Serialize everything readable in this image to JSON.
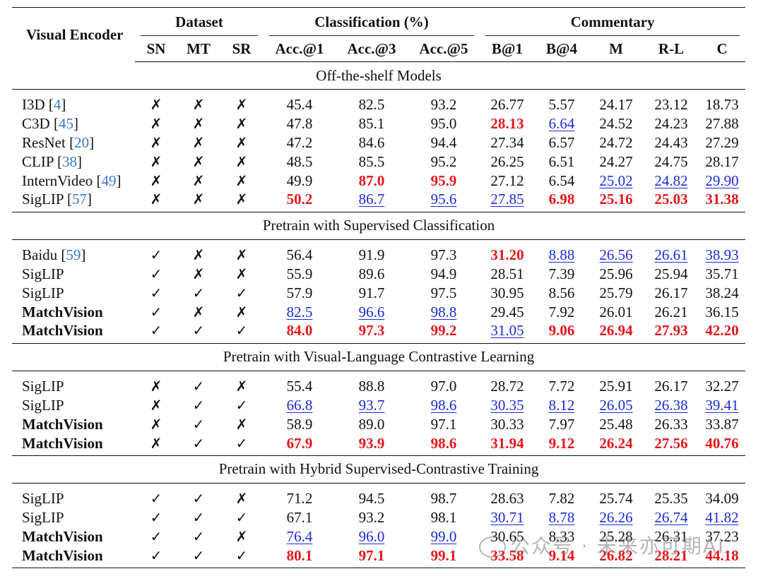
{
  "header": {
    "visual_encoder": "Visual Encoder",
    "groups": {
      "dataset": "Dataset",
      "classification": "Classification (%)",
      "commentary": "Commentary"
    },
    "columns": [
      "SN",
      "MT",
      "SR",
      "Acc.@1",
      "Acc.@3",
      "Acc.@5",
      "B@1",
      "B@4",
      "M",
      "R-L",
      "C"
    ]
  },
  "sections": [
    {
      "title": "Off-the-shelf Models",
      "rows": [
        {
          "name": "I3D",
          "cite": "4",
          "bold_name": false,
          "marks": [
            "✗",
            "✗",
            "✗"
          ],
          "values": [
            "45.4",
            "82.5",
            "93.2",
            "26.77",
            "5.57",
            "24.17",
            "23.12",
            "18.73"
          ],
          "styles": [
            "",
            "",
            "",
            "",
            "",
            "",
            "",
            ""
          ]
        },
        {
          "name": "C3D",
          "cite": "45",
          "bold_name": false,
          "marks": [
            "✗",
            "✗",
            "✗"
          ],
          "values": [
            "47.8",
            "85.1",
            "95.0",
            "28.13",
            "6.64",
            "24.52",
            "24.23",
            "27.88"
          ],
          "styles": [
            "",
            "",
            "",
            "best",
            "second",
            "",
            "",
            ""
          ]
        },
        {
          "name": "ResNet",
          "cite": "20",
          "bold_name": false,
          "marks": [
            "✗",
            "✗",
            "✗"
          ],
          "values": [
            "47.2",
            "84.6",
            "94.4",
            "27.34",
            "6.57",
            "24.72",
            "24.43",
            "27.29"
          ],
          "styles": [
            "",
            "",
            "",
            "",
            "",
            "",
            "",
            ""
          ]
        },
        {
          "name": "CLIP",
          "cite": "38",
          "bold_name": false,
          "marks": [
            "✗",
            "✗",
            "✗"
          ],
          "values": [
            "48.5",
            "85.5",
            "95.2",
            "26.25",
            "6.51",
            "24.27",
            "24.75",
            "28.17"
          ],
          "styles": [
            "",
            "",
            "",
            "",
            "",
            "",
            "",
            ""
          ]
        },
        {
          "name": "InternVideo",
          "cite": "49",
          "bold_name": false,
          "marks": [
            "✗",
            "✗",
            "✗"
          ],
          "values": [
            "49.9",
            "87.0",
            "95.9",
            "27.12",
            "6.54",
            "25.02",
            "24.82",
            "29.90"
          ],
          "styles": [
            "",
            "best",
            "best",
            "",
            "",
            "second",
            "second",
            "second"
          ]
        },
        {
          "name": "SigLIP",
          "cite": "57",
          "bold_name": false,
          "marks": [
            "✗",
            "✗",
            "✗"
          ],
          "values": [
            "50.2",
            "86.7",
            "95.6",
            "27.85",
            "6.98",
            "25.16",
            "25.03",
            "31.38"
          ],
          "styles": [
            "best",
            "second",
            "second",
            "second",
            "best",
            "best",
            "best",
            "best"
          ]
        }
      ]
    },
    {
      "title": "Pretrain with Supervised Classification",
      "rows": [
        {
          "name": "Baidu",
          "cite": "59",
          "bold_name": false,
          "marks": [
            "✓",
            "✗",
            "✗"
          ],
          "values": [
            "56.4",
            "91.9",
            "97.3",
            "31.20",
            "8.88",
            "26.56",
            "26.61",
            "38.93"
          ],
          "styles": [
            "",
            "",
            "",
            "best",
            "second",
            "second",
            "second",
            "second"
          ]
        },
        {
          "name": "SigLIP",
          "cite": "",
          "bold_name": false,
          "marks": [
            "✓",
            "✗",
            "✗"
          ],
          "values": [
            "55.9",
            "89.6",
            "94.9",
            "28.51",
            "7.39",
            "25.96",
            "25.94",
            "35.71"
          ],
          "styles": [
            "",
            "",
            "",
            "",
            "",
            "",
            "",
            ""
          ]
        },
        {
          "name": "SigLIP",
          "cite": "",
          "bold_name": false,
          "marks": [
            "✓",
            "✓",
            "✓"
          ],
          "values": [
            "57.9",
            "91.7",
            "97.5",
            "30.95",
            "8.56",
            "25.79",
            "26.17",
            "38.24"
          ],
          "styles": [
            "",
            "",
            "",
            "",
            "",
            "",
            "",
            ""
          ]
        },
        {
          "name": "MatchVision",
          "cite": "",
          "bold_name": true,
          "marks": [
            "✓",
            "✗",
            "✗"
          ],
          "values": [
            "82.5",
            "96.6",
            "98.8",
            "29.45",
            "7.92",
            "26.01",
            "26.21",
            "36.15"
          ],
          "styles": [
            "second",
            "second",
            "second",
            "",
            "",
            "",
            "",
            ""
          ]
        },
        {
          "name": "MatchVision",
          "cite": "",
          "bold_name": true,
          "marks": [
            "✓",
            "✓",
            "✓"
          ],
          "values": [
            "84.0",
            "97.3",
            "99.2",
            "31.05",
            "9.06",
            "26.94",
            "27.93",
            "42.20"
          ],
          "styles": [
            "best",
            "best",
            "best",
            "second",
            "best",
            "best",
            "best",
            "best"
          ]
        }
      ]
    },
    {
      "title": "Pretrain with Visual-Language Contrastive Learning",
      "rows": [
        {
          "name": "SigLIP",
          "cite": "",
          "bold_name": false,
          "marks": [
            "✗",
            "✓",
            "✗"
          ],
          "values": [
            "55.4",
            "88.8",
            "97.0",
            "28.72",
            "7.72",
            "25.91",
            "26.17",
            "32.27"
          ],
          "styles": [
            "",
            "",
            "",
            "",
            "",
            "",
            "",
            ""
          ]
        },
        {
          "name": "SigLIP",
          "cite": "",
          "bold_name": false,
          "marks": [
            "✗",
            "✓",
            "✓"
          ],
          "values": [
            "66.8",
            "93.7",
            "98.6",
            "30.35",
            "8.12",
            "26.05",
            "26.38",
            "39.41"
          ],
          "styles": [
            "second",
            "second",
            "second",
            "second",
            "second",
            "second",
            "second",
            "second"
          ]
        },
        {
          "name": "MatchVision",
          "cite": "",
          "bold_name": true,
          "marks": [
            "✗",
            "✓",
            "✗"
          ],
          "values": [
            "58.9",
            "89.0",
            "97.1",
            "30.33",
            "7.97",
            "25.48",
            "26.33",
            "33.87"
          ],
          "styles": [
            "",
            "",
            "",
            "",
            "",
            "",
            "",
            ""
          ]
        },
        {
          "name": "MatchVision",
          "cite": "",
          "bold_name": true,
          "marks": [
            "✗",
            "✓",
            "✓"
          ],
          "values": [
            "67.9",
            "93.9",
            "98.6",
            "31.94",
            "9.12",
            "26.24",
            "27.56",
            "40.76"
          ],
          "styles": [
            "best",
            "best",
            "best",
            "best",
            "best",
            "best",
            "best",
            "best"
          ]
        }
      ]
    },
    {
      "title": "Pretrain with Hybrid Supervised-Contrastive Training",
      "rows": [
        {
          "name": "SigLIP",
          "cite": "",
          "bold_name": false,
          "marks": [
            "✓",
            "✓",
            "✗"
          ],
          "values": [
            "71.2",
            "94.5",
            "98.7",
            "28.63",
            "7.82",
            "25.74",
            "25.35",
            "34.09"
          ],
          "styles": [
            "",
            "",
            "",
            "",
            "",
            "",
            "",
            ""
          ]
        },
        {
          "name": "SigLIP",
          "cite": "",
          "bold_name": false,
          "marks": [
            "✓",
            "✓",
            "✓"
          ],
          "values": [
            "67.1",
            "93.2",
            "98.1",
            "30.71",
            "8.78",
            "26.26",
            "26.74",
            "41.82"
          ],
          "styles": [
            "",
            "",
            "",
            "second",
            "second",
            "second",
            "second",
            "second"
          ]
        },
        {
          "name": "MatchVision",
          "cite": "",
          "bold_name": true,
          "marks": [
            "✓",
            "✓",
            "✗"
          ],
          "values": [
            "76.4",
            "96.0",
            "99.0",
            "30.65",
            "8.33",
            "25.28",
            "26.31",
            "37.23"
          ],
          "styles": [
            "second",
            "second",
            "second",
            "",
            "",
            "",
            "",
            ""
          ]
        },
        {
          "name": "MatchVision",
          "cite": "",
          "bold_name": true,
          "marks": [
            "✓",
            "✓",
            "✓"
          ],
          "values": [
            "80.1",
            "97.1",
            "99.1",
            "33.58",
            "9.14",
            "26.82",
            "28.21",
            "44.18"
          ],
          "styles": [
            "best",
            "best",
            "best",
            "best",
            "best",
            "best",
            "best",
            "best"
          ]
        }
      ]
    }
  ],
  "colors": {
    "best": "#e4161b",
    "second": "#1a2bd8",
    "cite": "#3a78c6"
  },
  "watermark": "公众号 · 未来亦可期AI"
}
